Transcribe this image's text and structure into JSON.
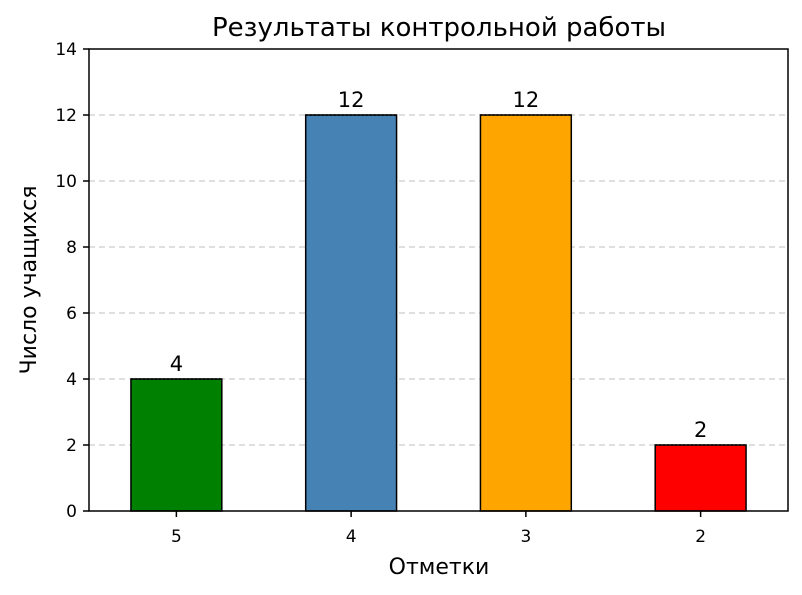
{
  "chart_data": {
    "type": "bar",
    "title": "Результаты контрольной работы",
    "xlabel": "Отметки",
    "ylabel": "Число учащихся",
    "categories": [
      "5",
      "4",
      "3",
      "2"
    ],
    "values": [
      4,
      12,
      12,
      2
    ],
    "colors": [
      "#008000",
      "#4682B4",
      "#FFA500",
      "#FF0000"
    ],
    "ylim": [
      0,
      14
    ],
    "yticks": [
      0,
      2,
      4,
      6,
      8,
      10,
      12,
      14
    ],
    "grid": "y",
    "data_labels": true
  }
}
